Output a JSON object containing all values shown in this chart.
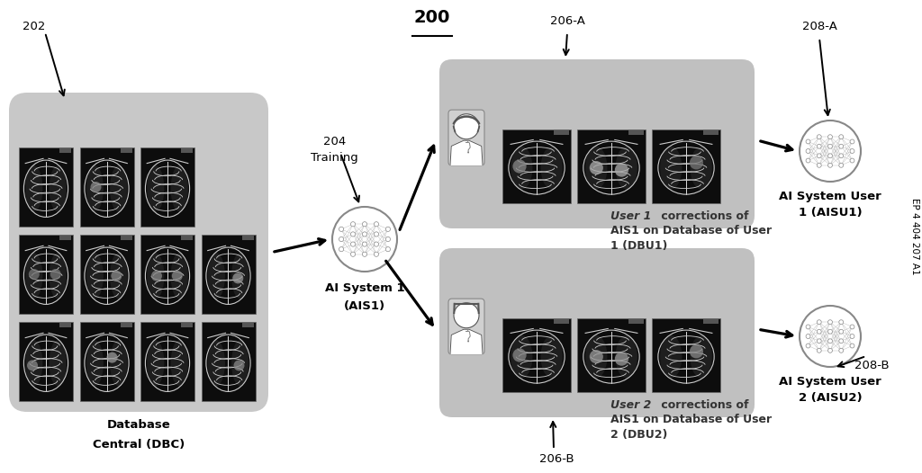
{
  "title": "200",
  "bg_color": "#ffffff",
  "dbc_box_color": "#c8c8c8",
  "user_box_color": "#c0c0c0",
  "doctor_card_color": "#d0d0d0",
  "xray_bg": "#111111",
  "xray_border": "#444444",
  "neural_circle_color": "#ffffff",
  "neural_edge_color": "#aaaaaa",
  "neural_node_color": "#aaaaaa",
  "neural_line_color": "#aaaaaa",
  "label_202": "202",
  "label_204": "204",
  "label_206A": "206-A",
  "label_206B": "206-B",
  "label_208A": "208-A",
  "label_208B": "208-B",
  "label_dbc": "Database\nCentral (DBC)",
  "label_ais1_line1": "AI System 1",
  "label_ais1_line2": "(AIS1)",
  "label_training": "Training",
  "user1_italic": "User 1",
  "user1_rest": " corrections of\nAIS1 on Database of User\n1 (DBU1)",
  "user2_italic": "User 2",
  "user2_rest": " corrections of\nAIS1 on Database of User\n2 (DBU2)",
  "label_aisu1_line1": "AI System User",
  "label_aisu1_line2": "1 (AISU1)",
  "label_aisu2_line1": "AI System User",
  "label_aisu2_line2": "2 (AISU2)",
  "side_text": "EP 4 404 207 A1"
}
